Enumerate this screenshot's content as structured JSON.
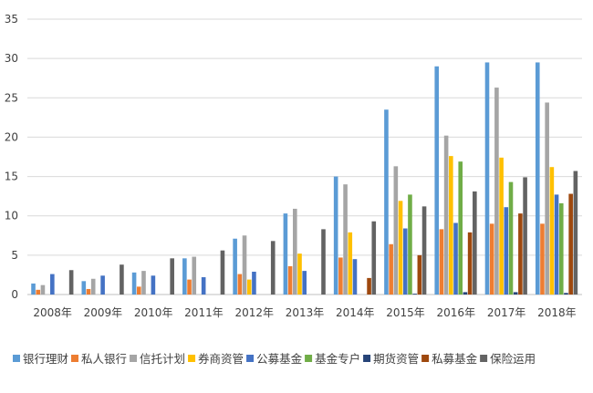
{
  "chart_data": {
    "type": "bar",
    "title": "",
    "xlabel": "",
    "ylabel": "",
    "ylim": [
      0,
      35
    ],
    "yticks": [
      0,
      5,
      10,
      15,
      20,
      25,
      30,
      35
    ],
    "grid": true,
    "legend_position": "bottom",
    "categories": [
      "2008年",
      "2009年",
      "2010年",
      "2011年",
      "2012年",
      "2013年",
      "2014年",
      "2015年",
      "2016年",
      "2017年",
      "2018年"
    ],
    "series": [
      {
        "name": "银行理财",
        "color": "#5B9BD5",
        "values": [
          1.4,
          1.7,
          2.8,
          4.6,
          7.1,
          10.3,
          15.0,
          23.5,
          29.0,
          29.5,
          29.5
        ]
      },
      {
        "name": "私人银行",
        "color": "#ED7D31",
        "values": [
          0.6,
          0.7,
          1.0,
          1.9,
          2.6,
          3.6,
          4.7,
          6.4,
          8.3,
          9.0,
          9.0
        ]
      },
      {
        "name": "信托计划",
        "color": "#A5A5A5",
        "values": [
          1.2,
          2.0,
          3.0,
          4.8,
          7.5,
          10.9,
          14.0,
          16.3,
          20.2,
          26.3,
          24.4
        ]
      },
      {
        "name": "券商资管",
        "color": "#FFC000",
        "values": [
          0.0,
          0.0,
          0.0,
          0.0,
          1.9,
          5.2,
          7.9,
          11.9,
          17.6,
          17.4,
          16.2
        ]
      },
      {
        "name": "公募基金",
        "color": "#4472C4",
        "values": [
          2.6,
          2.4,
          2.4,
          2.2,
          2.9,
          3.0,
          4.5,
          8.4,
          9.1,
          11.1,
          12.7
        ]
      },
      {
        "name": "基金专户",
        "color": "#70AD47",
        "values": [
          0.0,
          0.0,
          0.0,
          0.0,
          0.0,
          0.0,
          0.0,
          12.7,
          16.9,
          14.3,
          11.6
        ]
      },
      {
        "name": "期货资管",
        "color": "#264478",
        "values": [
          0.0,
          0.0,
          0.0,
          0.0,
          0.0,
          0.0,
          0.0,
          0.1,
          0.3,
          0.3,
          0.2
        ]
      },
      {
        "name": "私募基金",
        "color": "#9E480E",
        "values": [
          0.0,
          0.0,
          0.0,
          0.0,
          0.0,
          0.0,
          2.1,
          5.0,
          7.9,
          10.3,
          12.8
        ]
      },
      {
        "name": "保险运用",
        "color": "#636363",
        "values": [
          3.1,
          3.8,
          4.6,
          5.6,
          6.8,
          8.3,
          9.3,
          11.2,
          13.1,
          14.9,
          15.7
        ]
      }
    ]
  }
}
